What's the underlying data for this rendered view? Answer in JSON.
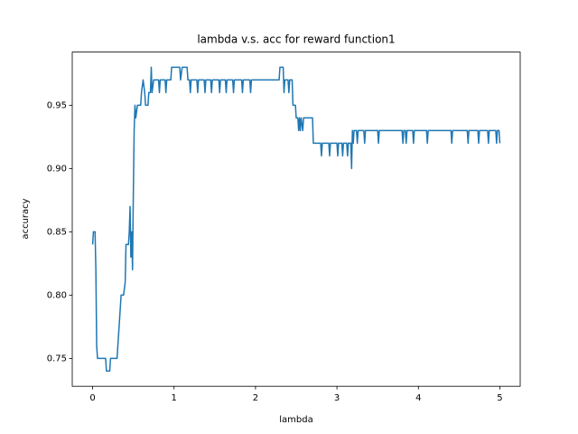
{
  "chart_data": {
    "type": "line",
    "title": "lambda v.s. acc for reward function1",
    "x_label": "lambda",
    "y_label": "accuracy",
    "color": "#1f77b4",
    "xlim": [
      -0.25,
      5.25
    ],
    "ylim": [
      0.728,
      0.992
    ],
    "xticks": [
      0,
      1,
      2,
      3,
      4,
      5
    ],
    "yticks": [
      0.75,
      {
        "value": 0.8,
        "label": "0.80"
      },
      0.85,
      {
        "value": 0.9,
        "label": "0.90"
      },
      0.95
    ],
    "x": [
      0,
      0.01,
      0.03,
      0.04,
      0.05,
      0.06,
      0.16,
      0.17,
      0.21,
      0.22,
      0.3,
      0.31,
      0.33,
      0.35,
      0.38,
      0.4,
      0.41,
      0.44,
      0.45,
      0.46,
      0.47,
      0.48,
      0.49,
      0.5,
      0.51,
      0.52,
      0.53,
      0.55,
      0.59,
      0.6,
      0.62,
      0.64,
      0.65,
      0.68,
      0.69,
      0.71,
      0.72,
      0.73,
      0.75,
      0.81,
      0.82,
      0.83,
      0.89,
      0.9,
      0.91,
      0.96,
      0.97,
      1.07,
      1.08,
      1.1,
      1.16,
      1.17,
      1.19,
      1.2,
      1.21,
      1.28,
      1.29,
      1.3,
      1.37,
      1.38,
      1.39,
      1.45,
      1.46,
      1.47,
      1.55,
      1.56,
      1.57,
      1.63,
      1.64,
      1.65,
      1.72,
      1.73,
      1.74,
      1.83,
      1.84,
      1.85,
      1.93,
      1.94,
      1.95,
      2.29,
      2.3,
      2.34,
      2.35,
      2.36,
      2.4,
      2.41,
      2.42,
      2.45,
      2.46,
      2.49,
      2.5,
      2.52,
      2.53,
      2.54,
      2.55,
      2.56,
      2.58,
      2.59,
      2.7,
      2.71,
      2.8,
      2.81,
      2.82,
      2.9,
      2.91,
      2.92,
      3.0,
      3.01,
      3.02,
      3.06,
      3.07,
      3.08,
      3.12,
      3.13,
      3.14,
      3.17,
      3.18,
      3.19,
      3.2,
      3.21,
      3.24,
      3.25,
      3.26,
      3.33,
      3.34,
      3.35,
      3.5,
      3.51,
      3.52,
      3.8,
      3.81,
      3.82,
      3.84,
      3.85,
      3.86,
      3.93,
      3.94,
      3.95,
      4.1,
      4.11,
      4.12,
      4.4,
      4.41,
      4.42,
      4.6,
      4.61,
      4.62,
      4.73,
      4.74,
      4.75,
      4.85,
      4.86,
      4.87,
      4.95,
      4.96,
      4.97,
      4.99,
      5.0
    ],
    "values": [
      0.84,
      0.85,
      0.85,
      0.82,
      0.76,
      0.75,
      0.75,
      0.74,
      0.74,
      0.75,
      0.75,
      0.76,
      0.78,
      0.8,
      0.8,
      0.81,
      0.84,
      0.84,
      0.85,
      0.87,
      0.83,
      0.85,
      0.82,
      0.88,
      0.93,
      0.95,
      0.94,
      0.95,
      0.95,
      0.96,
      0.97,
      0.96,
      0.95,
      0.95,
      0.96,
      0.96,
      0.98,
      0.96,
      0.97,
      0.97,
      0.96,
      0.97,
      0.97,
      0.96,
      0.97,
      0.97,
      0.98,
      0.98,
      0.97,
      0.98,
      0.98,
      0.97,
      0.97,
      0.96,
      0.97,
      0.97,
      0.96,
      0.97,
      0.97,
      0.96,
      0.97,
      0.97,
      0.96,
      0.97,
      0.97,
      0.96,
      0.97,
      0.97,
      0.96,
      0.97,
      0.97,
      0.96,
      0.97,
      0.97,
      0.96,
      0.97,
      0.97,
      0.96,
      0.97,
      0.97,
      0.98,
      0.98,
      0.96,
      0.97,
      0.97,
      0.96,
      0.97,
      0.97,
      0.95,
      0.95,
      0.94,
      0.94,
      0.93,
      0.94,
      0.93,
      0.94,
      0.93,
      0.94,
      0.94,
      0.92,
      0.92,
      0.91,
      0.92,
      0.92,
      0.91,
      0.92,
      0.92,
      0.91,
      0.92,
      0.92,
      0.91,
      0.92,
      0.92,
      0.91,
      0.92,
      0.92,
      0.9,
      0.93,
      0.92,
      0.93,
      0.93,
      0.92,
      0.93,
      0.93,
      0.92,
      0.93,
      0.93,
      0.92,
      0.93,
      0.93,
      0.92,
      0.93,
      0.93,
      0.92,
      0.93,
      0.93,
      0.92,
      0.93,
      0.93,
      0.92,
      0.93,
      0.93,
      0.92,
      0.93,
      0.93,
      0.92,
      0.93,
      0.93,
      0.92,
      0.93,
      0.93,
      0.92,
      0.93,
      0.93,
      0.92,
      0.93,
      0.93,
      0.92
    ]
  }
}
